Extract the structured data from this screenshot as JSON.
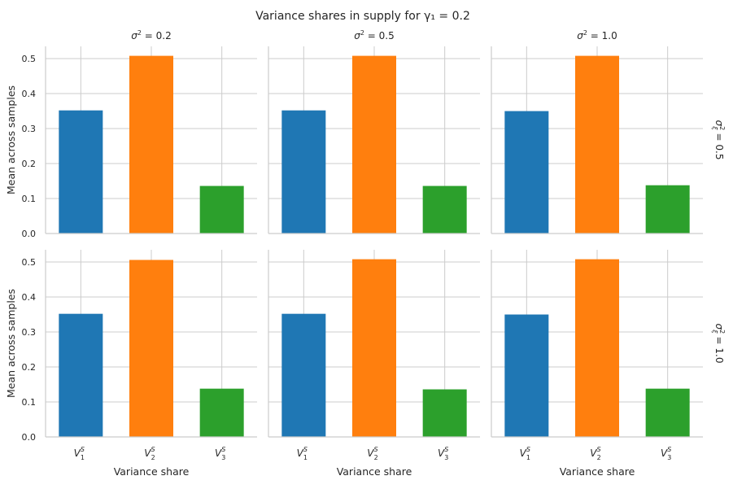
{
  "chart_data": {
    "type": "bar",
    "title": "Variance shares in supply for γ₁ = 0.2",
    "xlabel": "Variance share",
    "ylabel": "Mean across samples",
    "ylim": [
      0,
      0.535
    ],
    "yticks": [
      "0.0",
      "0.1",
      "0.2",
      "0.3",
      "0.4",
      "0.5"
    ],
    "categories": [
      {
        "base": "V",
        "sup": "S",
        "sub": "1"
      },
      {
        "base": "V",
        "sup": "S",
        "sub": "2"
      },
      {
        "base": "V",
        "sup": "S",
        "sub": "3"
      }
    ],
    "colors": [
      "#1f77b4",
      "#ff7f0e",
      "#2ca02c"
    ],
    "grid": true,
    "columns": [
      {
        "symbol": "σ",
        "sup": "2",
        "value": "= 0.2"
      },
      {
        "symbol": "σ",
        "sup": "2",
        "value": "= 0.5"
      },
      {
        "symbol": "σ",
        "sup": "2",
        "value": "= 1.0"
      }
    ],
    "rows": [
      {
        "symbol": "σ",
        "sup": "2",
        "sub": "ξ",
        "value": "= 0.5"
      },
      {
        "symbol": "σ",
        "sup": "2",
        "sub": "ξ",
        "value": "= 1.0"
      }
    ],
    "panels": [
      {
        "row": 0,
        "col": 0,
        "values": [
          0.352,
          0.508,
          0.136
        ]
      },
      {
        "row": 0,
        "col": 1,
        "values": [
          0.352,
          0.508,
          0.136
        ]
      },
      {
        "row": 0,
        "col": 2,
        "values": [
          0.35,
          0.508,
          0.138
        ]
      },
      {
        "row": 1,
        "col": 0,
        "values": [
          0.352,
          0.506,
          0.138
        ]
      },
      {
        "row": 1,
        "col": 1,
        "values": [
          0.352,
          0.508,
          0.136
        ]
      },
      {
        "row": 1,
        "col": 2,
        "values": [
          0.35,
          0.508,
          0.138
        ]
      }
    ]
  }
}
